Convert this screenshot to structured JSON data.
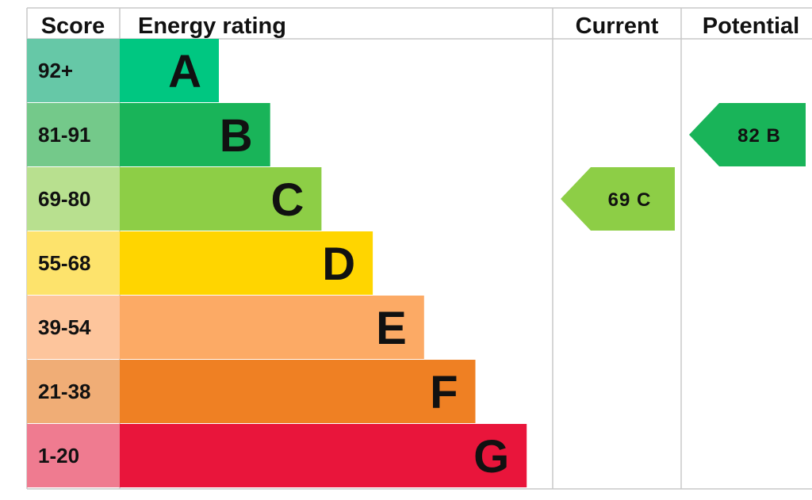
{
  "chart_data": {
    "type": "table",
    "headers": {
      "score": "Score",
      "energy_rating": "Energy rating",
      "current": "Current",
      "potential": "Potential"
    },
    "bands": [
      {
        "score": "92+",
        "letter": "A",
        "color": "#00c781",
        "score_color": "#66c8a7"
      },
      {
        "score": "81-91",
        "letter": "B",
        "color": "#19b459",
        "score_color": "#74c98a"
      },
      {
        "score": "69-80",
        "letter": "C",
        "color": "#8dce46",
        "score_color": "#b8e08f"
      },
      {
        "score": "55-68",
        "letter": "D",
        "color": "#ffd500",
        "score_color": "#fde36c"
      },
      {
        "score": "39-54",
        "letter": "E",
        "color": "#fcaa65",
        "score_color": "#fdc59c"
      },
      {
        "score": "21-38",
        "letter": "F",
        "color": "#ef8023",
        "score_color": "#f0ad76"
      },
      {
        "score": "1-20",
        "letter": "G",
        "color": "#e9153b",
        "score_color": "#ef7b90"
      }
    ],
    "current": {
      "value": 69,
      "letter": "C",
      "label": "69  C",
      "color": "#8dce46"
    },
    "potential": {
      "value": 82,
      "letter": "B",
      "label": "82  B",
      "color": "#19b459"
    }
  }
}
